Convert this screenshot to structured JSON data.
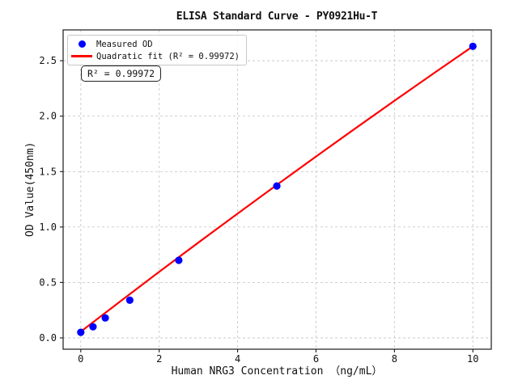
{
  "chart_data": {
    "type": "scatter",
    "title": "ELISA Standard Curve - PY0921Hu-T",
    "xlabel": "Human NRG3 Concentration （ng/mL）",
    "ylabel": "OD Value(450nm)",
    "xlim": [
      -0.45,
      10.47
    ],
    "ylim": [
      -0.102,
      2.778
    ],
    "xticks": [
      0,
      2,
      4,
      6,
      8,
      10
    ],
    "xtick_labels": [
      "0",
      "2",
      "4",
      "6",
      "8",
      "10"
    ],
    "yticks": [
      0,
      0.5,
      1.0,
      1.5,
      2.0,
      2.5
    ],
    "ytick_labels": [
      "0.0",
      "0.5",
      "1.0",
      "1.5",
      "2.0",
      "2.5"
    ],
    "grid": true,
    "legend_position": "upper left",
    "annotation": "R² = 0.99972",
    "r_squared": 0.99972,
    "colors": {
      "points": "#0000ff",
      "fit_line": "#ff0000",
      "gridline": "#c9c9c9",
      "spine": "#1a1a1a"
    },
    "series": [
      {
        "name": "Measured OD",
        "type": "scatter",
        "color": "#0000ff",
        "x": [
          0,
          0.3125,
          0.625,
          1.25,
          2.5,
          5,
          10
        ],
        "y": [
          0.05,
          0.1,
          0.18,
          0.34,
          0.7,
          1.37,
          2.63
        ]
      },
      {
        "name": "Quadratic fit (R² = 0.99972)",
        "type": "line",
        "color": "#ff0000",
        "x": [
          0,
          1,
          2,
          3,
          4,
          5,
          6,
          7,
          8,
          9,
          10
        ],
        "y": [
          0.057,
          0.327,
          0.596,
          0.86,
          1.121,
          1.38,
          1.636,
          1.889,
          2.139,
          2.386,
          2.63
        ]
      }
    ]
  }
}
